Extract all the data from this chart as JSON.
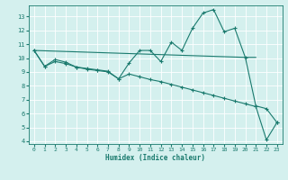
{
  "line1_x": [
    0,
    1,
    2,
    3,
    4,
    5,
    6,
    7,
    8,
    9,
    10,
    11,
    12,
    13,
    14,
    15,
    16,
    17,
    18,
    19,
    20,
    21,
    22,
    23
  ],
  "line1_y": [
    10.55,
    9.4,
    9.9,
    9.7,
    9.35,
    9.25,
    9.15,
    9.05,
    8.5,
    9.65,
    10.55,
    10.55,
    9.75,
    11.15,
    10.55,
    12.15,
    13.25,
    13.5,
    11.9,
    12.15,
    10.05,
    6.55,
    6.35,
    5.35
  ],
  "line2_x": [
    0,
    1,
    2,
    3,
    4,
    5,
    6,
    7,
    8,
    9,
    10,
    11,
    12,
    13,
    14,
    15,
    16,
    17,
    18,
    19,
    20,
    21,
    22,
    23
  ],
  "line2_y": [
    10.55,
    9.4,
    9.75,
    9.6,
    9.35,
    9.2,
    9.1,
    9.0,
    8.5,
    8.85,
    8.65,
    8.45,
    8.3,
    8.1,
    7.9,
    7.7,
    7.5,
    7.3,
    7.1,
    6.9,
    6.7,
    6.5,
    4.1,
    5.35
  ],
  "line3_x": [
    0,
    20,
    21
  ],
  "line3_y": [
    10.55,
    10.05,
    10.05
  ],
  "color": "#1a7a6e",
  "bg_color": "#d4f0ee",
  "grid_color": "#ffffff",
  "xlabel": "Humidex (Indice chaleur)",
  "xlim": [
    -0.5,
    23.5
  ],
  "ylim": [
    3.8,
    13.8
  ],
  "yticks": [
    4,
    5,
    6,
    7,
    8,
    9,
    10,
    11,
    12,
    13
  ],
  "xticks": [
    0,
    1,
    2,
    3,
    4,
    5,
    6,
    7,
    8,
    9,
    10,
    11,
    12,
    13,
    14,
    15,
    16,
    17,
    18,
    19,
    20,
    21,
    22,
    23
  ]
}
